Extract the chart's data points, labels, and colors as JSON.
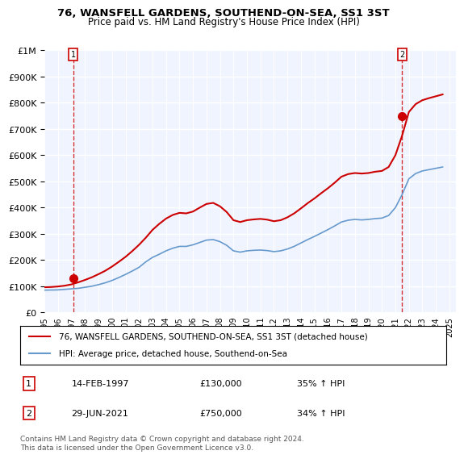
{
  "title": "76, WANSFELL GARDENS, SOUTHEND-ON-SEA, SS1 3ST",
  "subtitle": "Price paid vs. HM Land Registry's House Price Index (HPI)",
  "legend_line1": "76, WANSFELL GARDENS, SOUTHEND-ON-SEA, SS1 3ST (detached house)",
  "legend_line2": "HPI: Average price, detached house, Southend-on-Sea",
  "footer": "Contains HM Land Registry data © Crown copyright and database right 2024.\nThis data is licensed under the Open Government Licence v3.0.",
  "annotation1_label": "1",
  "annotation1_date": "14-FEB-1997",
  "annotation1_price": "£130,000",
  "annotation1_hpi": "35% ↑ HPI",
  "annotation2_label": "2",
  "annotation2_date": "29-JUN-2021",
  "annotation2_price": "£750,000",
  "annotation2_hpi": "34% ↑ HPI",
  "sale_color": "#cc0000",
  "hpi_color": "#6699cc",
  "background_color": "#ddeeff",
  "plot_bg": "#f0f4ff",
  "ylim": [
    0,
    1000000
  ],
  "yticks": [
    0,
    100000,
    200000,
    300000,
    400000,
    500000,
    600000,
    700000,
    800000,
    900000,
    1000000
  ],
  "xlim_start": 1995.0,
  "xlim_end": 2025.5,
  "sale1_x": 1997.12,
  "sale1_y": 130000,
  "sale2_x": 2021.5,
  "sale2_y": 750000,
  "hpi_x": [
    1995,
    1995.5,
    1996,
    1996.5,
    1997,
    1997.5,
    1998,
    1998.5,
    1999,
    1999.5,
    2000,
    2000.5,
    2001,
    2001.5,
    2002,
    2002.5,
    2003,
    2003.5,
    2004,
    2004.5,
    2005,
    2005.5,
    2006,
    2006.5,
    2007,
    2007.5,
    2008,
    2008.5,
    2009,
    2009.5,
    2010,
    2010.5,
    2011,
    2011.5,
    2012,
    2012.5,
    2013,
    2013.5,
    2014,
    2014.5,
    2015,
    2015.5,
    2016,
    2016.5,
    2017,
    2017.5,
    2018,
    2018.5,
    2019,
    2019.5,
    2020,
    2020.5,
    2021,
    2021.5,
    2022,
    2022.5,
    2023,
    2023.5,
    2024,
    2024.5
  ],
  "hpi_y": [
    85000,
    85500,
    86000,
    88000,
    90000,
    92000,
    96000,
    100000,
    106000,
    113000,
    122000,
    133000,
    145000,
    158000,
    172000,
    193000,
    210000,
    222000,
    235000,
    245000,
    252000,
    252000,
    258000,
    267000,
    276000,
    278000,
    270000,
    256000,
    235000,
    230000,
    235000,
    237000,
    238000,
    236000,
    232000,
    235000,
    242000,
    252000,
    265000,
    278000,
    290000,
    303000,
    316000,
    330000,
    345000,
    352000,
    355000,
    353000,
    355000,
    358000,
    360000,
    370000,
    400000,
    450000,
    510000,
    530000,
    540000,
    545000,
    550000,
    555000
  ],
  "sale_x": [
    1995,
    1995.5,
    1996,
    1996.5,
    1997,
    1997.5,
    1998,
    1998.5,
    1999,
    1999.5,
    2000,
    2000.5,
    2001,
    2001.5,
    2002,
    2002.5,
    2003,
    2003.5,
    2004,
    2004.5,
    2005,
    2005.5,
    2006,
    2006.5,
    2007,
    2007.5,
    2008,
    2008.5,
    2009,
    2009.5,
    2010,
    2010.5,
    2011,
    2011.5,
    2012,
    2012.5,
    2013,
    2013.5,
    2014,
    2014.5,
    2015,
    2015.5,
    2016,
    2016.5,
    2017,
    2017.5,
    2018,
    2018.5,
    2019,
    2019.5,
    2020,
    2020.5,
    2021,
    2021.5,
    2022,
    2022.5,
    2023,
    2023.5,
    2024,
    2024.5
  ],
  "sale_y": [
    96000,
    97000,
    99000,
    102000,
    107000,
    115000,
    124000,
    134000,
    146000,
    159000,
    175000,
    193000,
    212000,
    234000,
    258000,
    285000,
    315000,
    338000,
    358000,
    372000,
    380000,
    378000,
    385000,
    400000,
    414000,
    418000,
    405000,
    383000,
    352000,
    345000,
    352000,
    355000,
    357000,
    354000,
    348000,
    352000,
    363000,
    378000,
    397000,
    417000,
    435000,
    455000,
    474000,
    495000,
    518000,
    528000,
    532000,
    530000,
    532000,
    537000,
    540000,
    555000,
    600000,
    675000,
    765000,
    795000,
    810000,
    818000,
    825000,
    832000
  ]
}
